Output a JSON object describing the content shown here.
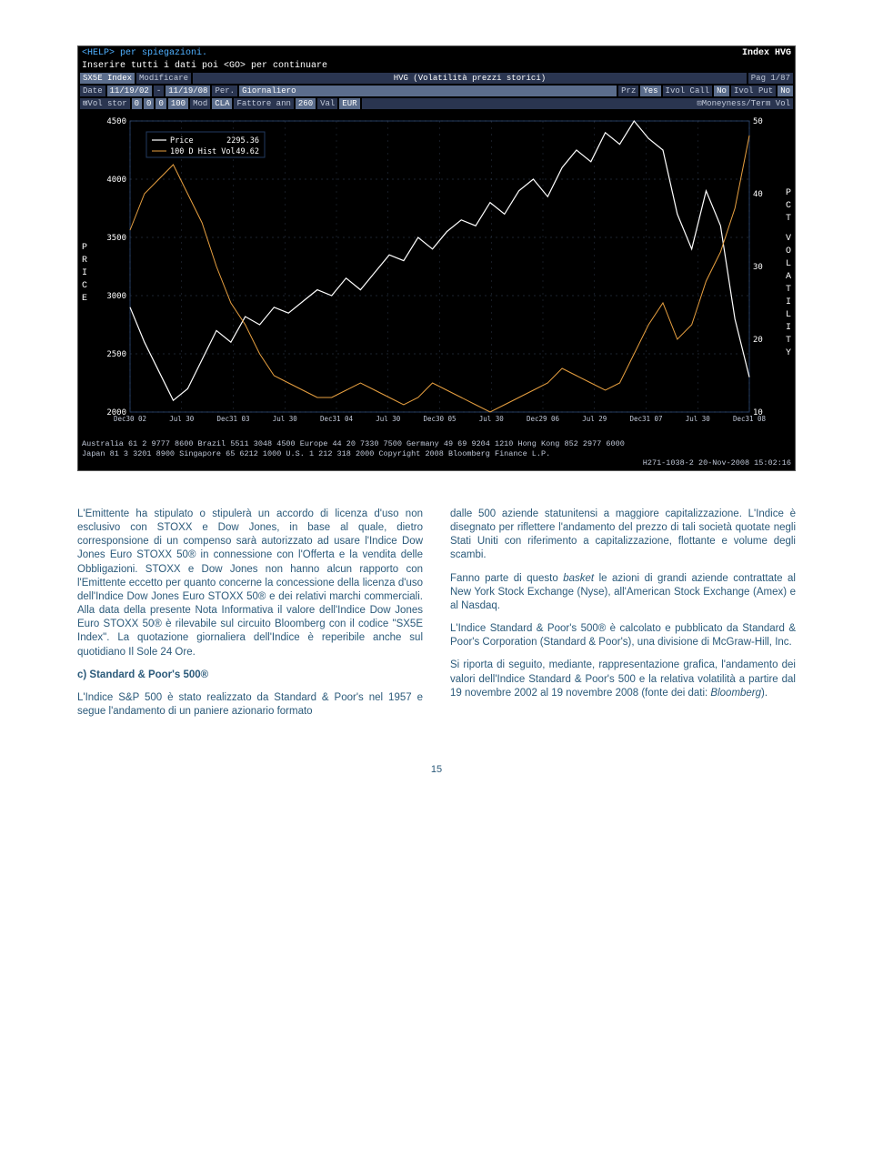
{
  "terminal": {
    "help_text": "<HELP> per spiegazioni.",
    "right_brand": "Index HVG",
    "line2": "Inserire tutti i dati poi <GO> per continuare",
    "row1": {
      "ticker": "SX5E Index",
      "modify": "Modificare",
      "title": "HVG (Volatilità prezzi storici)",
      "page": "Pag 1/87"
    },
    "row2": {
      "date_lbl": "Date",
      "date1": "11/19/02",
      "dash": "-",
      "date2": "11/19/08",
      "per_lbl": "Per.",
      "per_val": "Giornaliero",
      "prz_lbl": "Prz",
      "prz_val": "Yes",
      "ivolcall_lbl": "Ivol Call",
      "ivolcall_val": "No",
      "ivolput_lbl": "Ivol Put",
      "ivolput_val": "No"
    },
    "row3": {
      "volstor_lbl": "⊠Vol stor",
      "v1": "0",
      "v2": "0",
      "v3": "0",
      "v4": "100",
      "mod_lbl": "Mod",
      "mod_val": "CLA",
      "fattore_lbl": "Fattore ann",
      "fattore_val": "260",
      "val_lbl": "Val",
      "val_val": "EUR",
      "money_lbl": "⊡Moneyness/Term Vol"
    },
    "legend": {
      "price_lbl": "Price",
      "price_val": "2295.36",
      "hist_lbl": "100 D Hist Vol",
      "hist_val": "49.62"
    },
    "left_axis_label": "PRICE",
    "right_axis_label": "PCT VOLATILITY",
    "y_left": {
      "min": 2000,
      "max": 4500,
      "ticks": [
        2000,
        2500,
        3000,
        3500,
        4000,
        4500
      ]
    },
    "y_right": {
      "min": 10,
      "max": 50,
      "ticks": [
        10,
        20,
        30,
        40,
        50
      ]
    },
    "x_ticks": [
      "Dec30 02",
      "Jul 30",
      "Dec31 03",
      "Jul 30",
      "Dec31 04",
      "Jul 30",
      "Dec30 05",
      "Jul 30",
      "Dec29 06",
      "Jul 29",
      "Dec31 07",
      "Jul 30",
      "Dec31 08"
    ],
    "price_series": [
      2900,
      2600,
      2350,
      2100,
      2200,
      2450,
      2700,
      2600,
      2820,
      2750,
      2900,
      2850,
      2950,
      3050,
      3000,
      3150,
      3050,
      3200,
      3350,
      3300,
      3500,
      3400,
      3550,
      3650,
      3600,
      3800,
      3700,
      3900,
      4000,
      3850,
      4100,
      4250,
      4150,
      4400,
      4300,
      4500,
      4350,
      4250,
      3700,
      3400,
      3900,
      3600,
      2800,
      2300
    ],
    "vol_series": [
      35,
      40,
      42,
      44,
      40,
      36,
      30,
      25,
      22,
      18,
      15,
      14,
      13,
      12,
      12,
      13,
      14,
      13,
      12,
      11,
      12,
      14,
      13,
      12,
      11,
      10,
      11,
      12,
      13,
      14,
      16,
      15,
      14,
      13,
      14,
      18,
      22,
      25,
      20,
      22,
      28,
      32,
      38,
      48
    ],
    "footer1": "Australia 61 2 9777 8600 Brazil 5511 3048 4500 Europe 44 20 7330 7500 Germany 49 69 9204 1210 Hong Kong 852 2977 6000",
    "footer2": "Japan 81 3 3201 8900            Singapore 65 6212 1000     U.S. 1 212 318 2000       Copyright 2008 Bloomberg Finance L.P.",
    "footer3": "H271-1038-2 20-Nov-2008 15:02:16",
    "colors": {
      "bg": "#000000",
      "frame": "#223a60",
      "price_line": "#ffffff",
      "vol_line": "#e8a040",
      "grid": "#4a5a7a",
      "text": "#c0c8d8"
    }
  },
  "text": {
    "left_p1": "L'Emittente ha stipulato o stipulerà un accordo di licenza d'uso non esclusivo con STOXX e Dow Jones, in base al quale, dietro corresponsione di un compenso sarà autorizzato ad usare l'Indice Dow Jones Euro STOXX 50® in connessione con l'Offerta e la vendita delle Obbligazioni. STOXX e Dow Jones non hanno alcun rapporto con l'Emittente eccetto per quanto concerne la concessione della licenza d'uso dell'Indice Dow Jones Euro STOXX 50® e dei relativi marchi commerciali. Alla data della presente Nota Informativa il valore dell'Indice Dow Jones Euro STOXX 50® è rilevabile sul circuito Bloomberg con il codice \"SX5E Index\". La quotazione giornaliera dell'Indice è reperibile anche sul quotidiano Il Sole 24 Ore.",
    "left_h": "c) Standard & Poor's 500®",
    "left_p2": "L'Indice S&P 500 è stato realizzato da Standard & Poor's nel 1957 e segue l'andamento di un paniere azionario formato",
    "right_p1": "dalle 500 aziende statunitensi a maggiore capitalizzazione. L'Indice è disegnato per riflettere l'andamento del prezzo di tali società quotate negli Stati Uniti con riferimento a capitalizzazione, flottante e volume degli scambi.",
    "right_p2a": "Fanno parte di questo ",
    "right_p2_basket": "basket",
    "right_p2b": " le azioni di grandi aziende contrattate al New York Stock Exchange (Nyse), all'American Stock Exchange (Amex) e al Nasdaq.",
    "right_p3": "L'Indice Standard & Poor's 500® è calcolato e pubblicato da Standard & Poor's Corporation (Standard & Poor's), una divisione di McGraw-Hill, Inc.",
    "right_p4a": "Si riporta di seguito, mediante, rappresentazione grafica, l'andamento dei valori dell'Indice Standard & Poor's 500 e la relativa volatilità a partire dal 19 novembre 2002 al 19 novembre 2008 (fonte dei dati: ",
    "right_p4_bb": "Bloomberg",
    "right_p4b": ")."
  },
  "page_number": "15"
}
